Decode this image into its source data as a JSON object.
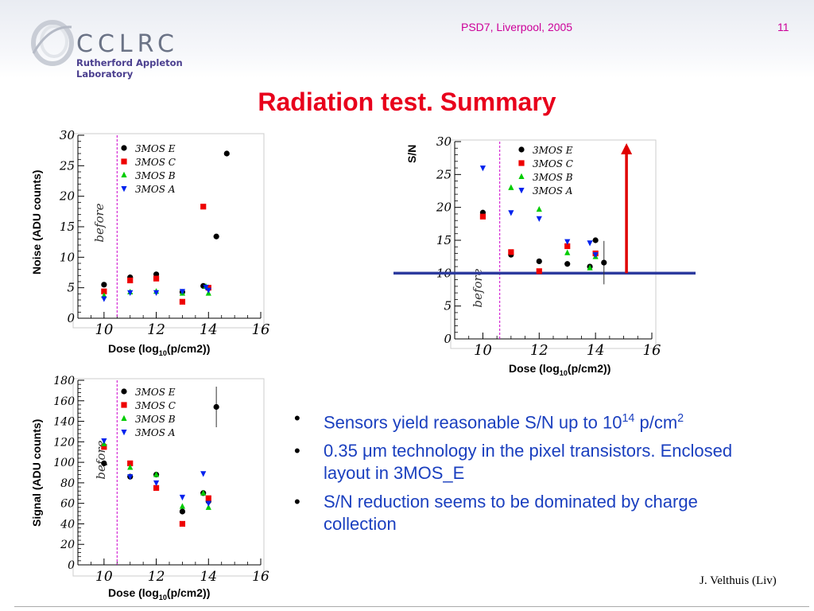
{
  "header": {
    "logo_text": "CCLRC",
    "logo_subtitle": "Rutherford Appleton Laboratory",
    "conference": "PSD7, Liverpool, 2005",
    "page_number": "11"
  },
  "title": "Radiation test. Summary",
  "before_label": "before",
  "colors": {
    "E": "#000000",
    "C": "#ee0000",
    "B": "#00cc00",
    "A": "#0022ee",
    "threshold_line": "#2c3a9e",
    "arrow": "#e00000",
    "before_line": "#cc00cc"
  },
  "chart_data": [
    {
      "type": "scatter",
      "id": "noise",
      "ylabel": "Noise (ADU counts)",
      "xlabel": "Dose (log",
      "xlabel_sub": "10",
      "xlabel_tail": "(p/cm2))",
      "xlim": [
        9,
        16
      ],
      "ylim": [
        0,
        30
      ],
      "xticks": [
        10,
        12,
        14,
        16
      ],
      "yticks": [
        0,
        5,
        10,
        15,
        20,
        25,
        30
      ],
      "before_x": 10.5,
      "legend": [
        "3MOS E",
        "3MOS C",
        "3MOS B",
        "3MOS A"
      ],
      "series": [
        {
          "name": "3MOS E",
          "key": "E",
          "marker": "circle",
          "points": [
            [
              10,
              5.5
            ],
            [
              11,
              6.7
            ],
            [
              12,
              7.2
            ],
            [
              13,
              4.3
            ],
            [
              13.8,
              5.3
            ],
            [
              14.3,
              13.4
            ],
            [
              14.7,
              27
            ]
          ]
        },
        {
          "name": "3MOS C",
          "key": "C",
          "marker": "square",
          "points": [
            [
              10,
              4.4
            ],
            [
              11,
              6.2
            ],
            [
              12,
              6.5
            ],
            [
              13,
              2.7
            ],
            [
              13.8,
              18.3
            ],
            [
              14,
              5
            ]
          ]
        },
        {
          "name": "3MOS B",
          "key": "B",
          "marker": "triangle",
          "points": [
            [
              10,
              3.7
            ],
            [
              11,
              4.3
            ],
            [
              12,
              4.4
            ],
            [
              13,
              4.1
            ],
            [
              13.9,
              5.2
            ],
            [
              14,
              4.1
            ]
          ]
        },
        {
          "name": "3MOS A",
          "key": "A",
          "marker": "tri-down",
          "points": [
            [
              10,
              3.2
            ],
            [
              11,
              4.2
            ],
            [
              12,
              4.2
            ],
            [
              13,
              4.4
            ],
            [
              13.9,
              5.1
            ],
            [
              14,
              4.6
            ]
          ]
        }
      ]
    },
    {
      "type": "scatter",
      "id": "sn",
      "ylabel": "S/N",
      "xlabel": "Dose (log",
      "xlabel_sub": "10",
      "xlabel_tail": "(p/cm2))",
      "xlim": [
        9,
        16
      ],
      "ylim": [
        0,
        30
      ],
      "xticks": [
        10,
        12,
        14,
        16
      ],
      "yticks": [
        0,
        5,
        10,
        15,
        20,
        25,
        30
      ],
      "before_x": 10.6,
      "threshold": 10,
      "arrow_x": 15.1,
      "legend": [
        "3MOS E",
        "3MOS C",
        "3MOS B",
        "3MOS A"
      ],
      "series": [
        {
          "name": "3MOS E",
          "key": "E",
          "marker": "circle",
          "points": [
            [
              10,
              19.2
            ],
            [
              11,
              12.8
            ],
            [
              12,
              11.8
            ],
            [
              13,
              11.4
            ],
            [
              13.8,
              11
            ],
            [
              14,
              15
            ],
            [
              14.3,
              11.6
            ]
          ]
        },
        {
          "name": "3MOS C",
          "key": "C",
          "marker": "square",
          "points": [
            [
              10,
              18.6
            ],
            [
              11,
              13.2
            ],
            [
              12,
              10.3
            ],
            [
              13,
              14.1
            ],
            [
              14,
              13
            ]
          ]
        },
        {
          "name": "3MOS B",
          "key": "B",
          "marker": "triangle",
          "points": [
            [
              11,
              23
            ],
            [
              12,
              19.7
            ],
            [
              13,
              13.1
            ],
            [
              13.8,
              10.8
            ],
            [
              14,
              12.5
            ]
          ]
        },
        {
          "name": "3MOS A",
          "key": "A",
          "marker": "tri-down",
          "points": [
            [
              10,
              26
            ],
            [
              11,
              19.2
            ],
            [
              12,
              18.3
            ],
            [
              13,
              14.8
            ],
            [
              13.8,
              14.6
            ],
            [
              14,
              12.8
            ]
          ]
        }
      ]
    },
    {
      "type": "scatter",
      "id": "signal",
      "ylabel": "Signal (ADU counts)",
      "xlabel": "Dose (log",
      "xlabel_sub": "10",
      "xlabel_tail": "(p/cm2))",
      "xlim": [
        9,
        16
      ],
      "ylim": [
        0,
        180
      ],
      "xticks": [
        10,
        12,
        14,
        16
      ],
      "yticks": [
        0,
        20,
        40,
        60,
        80,
        100,
        120,
        140,
        160,
        180
      ],
      "before_x": 10.5,
      "legend": [
        "3MOS E",
        "3MOS C",
        "3MOS B",
        "3MOS A"
      ],
      "series": [
        {
          "name": "3MOS E",
          "key": "E",
          "marker": "circle",
          "points": [
            [
              10,
              99
            ],
            [
              11,
              86
            ],
            [
              12,
              88
            ],
            [
              13,
              52
            ],
            [
              13.8,
              70
            ],
            [
              14,
              62
            ],
            [
              14.3,
              154
            ]
          ]
        },
        {
          "name": "3MOS C",
          "key": "C",
          "marker": "square",
          "points": [
            [
              10,
              115
            ],
            [
              11,
              99
            ],
            [
              12,
              75
            ],
            [
              13,
              40
            ],
            [
              14,
              65
            ]
          ]
        },
        {
          "name": "3MOS B",
          "key": "B",
          "marker": "triangle",
          "points": [
            [
              10,
              118
            ],
            [
              11,
              95
            ],
            [
              12,
              88
            ],
            [
              13,
              57
            ],
            [
              13.8,
              70
            ],
            [
              14,
              56
            ]
          ]
        },
        {
          "name": "3MOS A",
          "key": "A",
          "marker": "tri-down",
          "points": [
            [
              10,
              121
            ],
            [
              11,
              86
            ],
            [
              12,
              80
            ],
            [
              13,
              66
            ],
            [
              13.8,
              89
            ],
            [
              14,
              60
            ]
          ]
        }
      ]
    }
  ],
  "bullets": [
    {
      "pre": "Sensors yield reasonable S/N up to 10",
      "sup": "14",
      "post": " p/cm",
      "sup2": "2"
    },
    {
      "pre": "0.35 ",
      "mu": "μ",
      "post": "m technology in the pixel transistors. Enclosed layout in 3MOS_E"
    },
    {
      "pre": "S/N reduction seems to be dominated by charge collection"
    }
  ],
  "bullet_glyph": "•",
  "footer_author": "J. Velthuis (Liv)"
}
